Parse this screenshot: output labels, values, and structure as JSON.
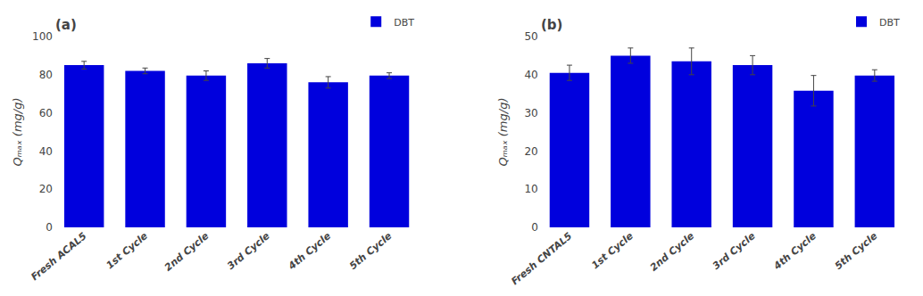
{
  "chart_data": [
    {
      "type": "bar",
      "title": "(a)",
      "categories": [
        "Fresh ACAL5",
        "1st Cycle",
        "2nd Cycle",
        "3rd Cycle",
        "4th Cycle",
        "5th Cycle"
      ],
      "series": [
        {
          "name": "DBT",
          "color": "#0000DD",
          "values": [
            85.0,
            82.0,
            79.5,
            86.0,
            76.0,
            79.5
          ],
          "errors": [
            2.0,
            1.5,
            2.5,
            2.5,
            3.0,
            1.5
          ]
        }
      ],
      "y_label": "Qₘₐₓ (mg/g)",
      "ylim": [
        0,
        100
      ],
      "yticks": [
        0,
        20,
        40,
        60,
        80,
        100
      ],
      "grid": false,
      "legend": "upper right"
    },
    {
      "type": "bar",
      "title": "(b)",
      "categories": [
        "Fresh CNTAL5",
        "1st Cycle",
        "2nd Cycle",
        "3rd Cycle",
        "4th Cycle",
        "5th Cycle"
      ],
      "series": [
        {
          "name": "DBT",
          "color": "#0000DD",
          "values": [
            40.5,
            45.0,
            43.5,
            42.5,
            35.8,
            39.8
          ],
          "errors": [
            2.0,
            2.0,
            3.5,
            2.5,
            4.0,
            1.5
          ]
        }
      ],
      "y_label": "Qₘₐₓ (mg/g)",
      "ylim": [
        0,
        50
      ],
      "yticks": [
        0,
        10,
        20,
        30,
        40,
        50
      ],
      "grid": false,
      "legend": "upper right"
    }
  ]
}
